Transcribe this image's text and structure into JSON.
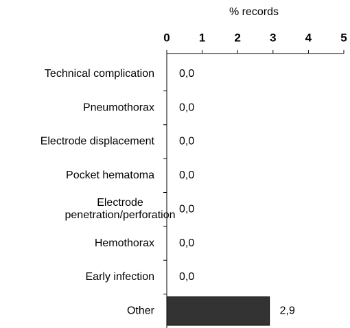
{
  "chart_data": {
    "type": "barh",
    "xlabel": "% records",
    "categories": [
      "Technical complication",
      "Pneumothorax",
      "Electrode displacement",
      "Pocket hematoma",
      "Electrode penetration/perforation",
      "Hemothorax",
      "Early infection",
      "Other"
    ],
    "values": [
      0.0,
      0.0,
      0.0,
      0.0,
      0.0,
      0.0,
      0.0,
      2.9
    ],
    "value_labels": [
      "0,0",
      "0,0",
      "0,0",
      "0,0",
      "0,0",
      "0,0",
      "0,0",
      "2,9"
    ],
    "color": "#333333",
    "xlim": [
      0,
      5
    ],
    "xticks": [
      0,
      1,
      2,
      3,
      4,
      5
    ]
  }
}
